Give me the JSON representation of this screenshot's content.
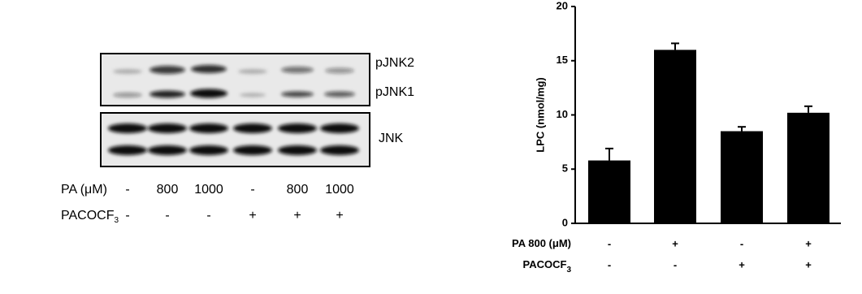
{
  "blot": {
    "band_labels": [
      "pJNK2",
      "pJNK1",
      "JNK"
    ],
    "rows": [
      {
        "label": {
          "text": "PA (μM)"
        },
        "lanes": [
          "-",
          "800",
          "1000",
          "-",
          "800",
          "1000"
        ]
      },
      {
        "label": {
          "text": "PACOCF",
          "sub": "3"
        },
        "lanes": [
          "-",
          "-",
          "-",
          "+",
          "+",
          "+"
        ]
      }
    ]
  },
  "chart_data": {
    "type": "bar",
    "y_label": "LPC (nmol/mg)",
    "series": [
      {
        "color": "#000000",
        "values": [
          5.8,
          16.0,
          8.5,
          10.2
        ],
        "errors": [
          1.1,
          0.6,
          0.4,
          0.6
        ]
      }
    ],
    "ylim": [
      0,
      20
    ],
    "yticks": [
      0,
      5,
      10,
      15,
      20
    ],
    "conditions": [
      {
        "label": {
          "text": "PA 800 (μM)"
        },
        "values": [
          "-",
          "+",
          "-",
          "+"
        ]
      },
      {
        "label": {
          "text": "PACOCF",
          "sub": "3"
        },
        "values": [
          "-",
          "-",
          "+",
          "+"
        ]
      }
    ]
  }
}
